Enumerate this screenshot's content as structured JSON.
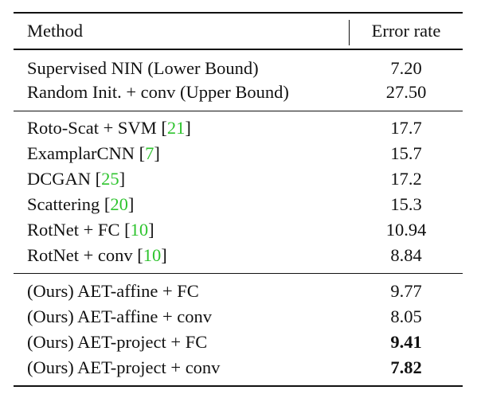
{
  "table": {
    "header": {
      "method": "Method",
      "error": "Error rate"
    },
    "groups": [
      {
        "rows": [
          {
            "method": "Supervised NIN (Lower Bound)",
            "cite": "",
            "error": "7.20",
            "bold": false
          },
          {
            "method": "Random Init. + conv (Upper Bound)",
            "cite": "",
            "error": "27.50",
            "bold": false
          }
        ]
      },
      {
        "rows": [
          {
            "method": "Roto-Scat + SVM ",
            "cite": "21",
            "error": "17.7",
            "bold": false
          },
          {
            "method": "ExamplarCNN ",
            "cite": "7",
            "error": "15.7",
            "bold": false
          },
          {
            "method": "DCGAN ",
            "cite": "25",
            "error": "17.2",
            "bold": false
          },
          {
            "method": "Scattering ",
            "cite": "20",
            "error": "15.3",
            "bold": false
          },
          {
            "method": "RotNet + FC ",
            "cite": "10",
            "error": "10.94",
            "bold": false
          },
          {
            "method": "RotNet + conv ",
            "cite": "10",
            "error": "8.84",
            "bold": false
          }
        ]
      },
      {
        "rows": [
          {
            "method": "(Ours) AET-affine + FC",
            "cite": "",
            "error": "9.77",
            "bold": false
          },
          {
            "method": "(Ours) AET-affine + conv",
            "cite": "",
            "error": "8.05",
            "bold": false
          },
          {
            "method": "(Ours) AET-project + FC",
            "cite": "",
            "error": "9.41",
            "bold": true
          },
          {
            "method": "(Ours) AET-project + conv",
            "cite": "",
            "error": "7.82",
            "bold": true
          }
        ]
      }
    ],
    "colors": {
      "text": "#111111",
      "citation": "#2ec42e"
    }
  }
}
